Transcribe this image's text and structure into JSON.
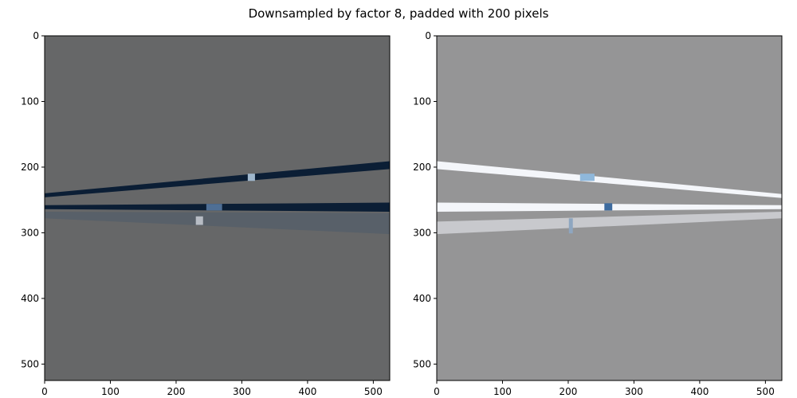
{
  "title": "Downsampled by factor 8, padded with 200 pixels",
  "chart_data": [
    {
      "type": "heatmap",
      "name": "left-image",
      "xlim": [
        0,
        525
      ],
      "ylim": [
        525,
        0
      ],
      "x_ticks": [
        0,
        100,
        200,
        300,
        400,
        500
      ],
      "y_ticks": [
        0,
        100,
        200,
        300,
        400,
        500
      ],
      "background_color": "#666768",
      "bands": [
        {
          "points": [
            [
              0,
              240
            ],
            [
              525,
              191
            ],
            [
              525,
              203
            ],
            [
              0,
              246
            ]
          ],
          "color": "#0b1e35"
        },
        {
          "points": [
            [
              0,
              258
            ],
            [
              525,
              254
            ],
            [
              525,
              268
            ],
            [
              0,
              264
            ]
          ],
          "color": "#0b1e35"
        },
        {
          "points": [
            [
              0,
              268
            ],
            [
              525,
              270
            ],
            [
              525,
              302
            ],
            [
              0,
              278
            ]
          ],
          "color": "#586069"
        }
      ],
      "blocks": [
        {
          "x": [
            309,
            320
          ],
          "y": [
            210,
            221
          ],
          "color": "#9fb7cd"
        },
        {
          "x": [
            246,
            270
          ],
          "y": [
            256,
            266
          ],
          "color": "#4f6f95"
        },
        {
          "x": [
            230,
            241
          ],
          "y": [
            275,
            288
          ],
          "color": "#b7bcc4"
        }
      ]
    },
    {
      "type": "heatmap",
      "name": "right-image",
      "xlim": [
        0,
        525
      ],
      "ylim": [
        525,
        0
      ],
      "x_ticks": [
        0,
        100,
        200,
        300,
        400,
        500
      ],
      "y_ticks": [
        0,
        100,
        200,
        300,
        400,
        500
      ],
      "background_color": "#959596",
      "bands": [
        {
          "points": [
            [
              0,
              191
            ],
            [
              525,
              241
            ],
            [
              525,
              247
            ],
            [
              0,
              203
            ]
          ],
          "color": "#f4f6fa"
        },
        {
          "points": [
            [
              0,
              254
            ],
            [
              525,
              258
            ],
            [
              525,
              264
            ],
            [
              0,
              268
            ]
          ],
          "color": "#f4f6fa"
        },
        {
          "points": [
            [
              0,
              283
            ],
            [
              525,
              268
            ],
            [
              525,
              278
            ],
            [
              0,
              302
            ]
          ],
          "color": "#c8c9cd"
        }
      ],
      "blocks": [
        {
          "x": [
            218,
            240
          ],
          "y": [
            210,
            221
          ],
          "color": "#8fb8db"
        },
        {
          "x": [
            255,
            267
          ],
          "y": [
            255,
            266
          ],
          "color": "#3d6b9f"
        },
        {
          "x": [
            201,
            207
          ],
          "y": [
            278,
            301
          ],
          "color": "#8ea6c0"
        }
      ]
    }
  ]
}
